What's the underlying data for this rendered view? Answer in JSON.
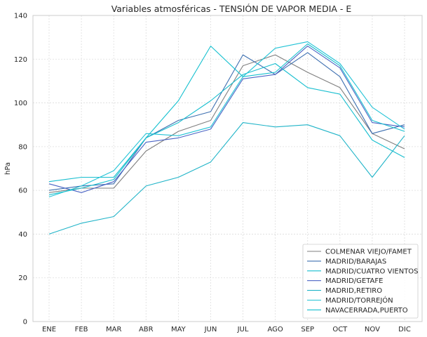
{
  "chart_data": {
    "type": "line",
    "title": "Variables atmosféricas - TENSIÓN DE VAPOR  MEDIA - E",
    "xlabel": "",
    "ylabel": "hPa",
    "categories": [
      "ENE",
      "FEB",
      "MAR",
      "ABR",
      "MAY",
      "JUN",
      "JUL",
      "AGO",
      "SEP",
      "OCT",
      "NOV",
      "DIC"
    ],
    "ylim": [
      0,
      140
    ],
    "yticks": [
      0,
      20,
      40,
      60,
      80,
      100,
      120,
      140
    ],
    "grid": true,
    "legend_position": "lower-right",
    "series": [
      {
        "name": "COLMENAR VIEJO/FAMET",
        "color": "#7f7f7f",
        "values": [
          59,
          61,
          61,
          78,
          87,
          92,
          117,
          122,
          114,
          107,
          86,
          79
        ]
      },
      {
        "name": "MADRID/BARAJAS",
        "color": "#3d6fb0",
        "values": [
          60,
          62,
          63,
          84,
          92,
          96,
          122,
          113,
          123,
          112,
          86,
          90
        ]
      },
      {
        "name": "MADRID/CUATRO VIENTOS",
        "color": "#17becf",
        "values": [
          64,
          66,
          66,
          84,
          91,
          101,
          113,
          118,
          107,
          104,
          83,
          75
        ]
      },
      {
        "name": "MADRID/GETAFE",
        "color": "#4a63c4",
        "values": [
          63,
          59,
          64,
          82,
          84,
          88,
          111,
          113,
          126,
          116,
          91,
          89
        ]
      },
      {
        "name": "MADRID,RETIRO",
        "color": "#20b4c8",
        "values": [
          40,
          45,
          48,
          62,
          66,
          73,
          91,
          89,
          90,
          85,
          66,
          85
        ]
      },
      {
        "name": "MADRID/TORREJÓN",
        "color": "#22c3d6",
        "values": [
          57,
          62,
          69,
          86,
          85,
          89,
          112,
          125,
          128,
          118,
          98,
          88
        ]
      },
      {
        "name": "NAVACERRADA,PUERTO",
        "color": "#15c0cf",
        "values": [
          58,
          61,
          65,
          84,
          101,
          126,
          112,
          114,
          127,
          117,
          92,
          87
        ]
      }
    ]
  }
}
